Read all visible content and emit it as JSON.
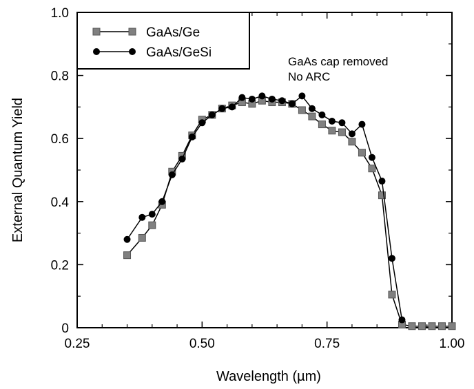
{
  "chart_data": {
    "type": "line",
    "title": "",
    "xlabel": "Wavelength (µm)",
    "ylabel": "External Quantum Yield",
    "xlim": [
      0.25,
      1.0
    ],
    "ylim": [
      0,
      1.0
    ],
    "x_ticks": [
      "0.25",
      "0.50",
      "0.75",
      "1.00"
    ],
    "y_ticks": [
      "0",
      "0.2",
      "0.4",
      "0.6",
      "0.8",
      "1.0"
    ],
    "grid": false,
    "legend_position": "top-left",
    "annotations": [
      "GaAs cap removed",
      "No ARC"
    ],
    "series": [
      {
        "name": "GaAs/Ge",
        "marker": "square",
        "color": "#808080",
        "x": [
          0.35,
          0.38,
          0.4,
          0.42,
          0.44,
          0.46,
          0.48,
          0.5,
          0.52,
          0.54,
          0.56,
          0.58,
          0.6,
          0.62,
          0.64,
          0.66,
          0.68,
          0.7,
          0.72,
          0.74,
          0.76,
          0.78,
          0.8,
          0.82,
          0.84,
          0.86,
          0.88,
          0.9,
          0.92,
          0.94,
          0.96,
          0.98,
          1.0
        ],
        "y": [
          0.23,
          0.285,
          0.325,
          0.39,
          0.495,
          0.545,
          0.61,
          0.66,
          0.675,
          0.695,
          0.705,
          0.715,
          0.71,
          0.72,
          0.715,
          0.715,
          0.71,
          0.69,
          0.67,
          0.645,
          0.625,
          0.62,
          0.59,
          0.555,
          0.505,
          0.42,
          0.105,
          0.01,
          0.005,
          0.005,
          0.005,
          0.005,
          0.005
        ]
      },
      {
        "name": "GaAs/GeSi",
        "marker": "circle",
        "color": "#000000",
        "x": [
          0.35,
          0.38,
          0.4,
          0.42,
          0.44,
          0.46,
          0.48,
          0.5,
          0.52,
          0.54,
          0.56,
          0.58,
          0.6,
          0.62,
          0.64,
          0.66,
          0.68,
          0.7,
          0.72,
          0.74,
          0.76,
          0.78,
          0.8,
          0.82,
          0.84,
          0.86,
          0.88,
          0.9
        ],
        "y": [
          0.28,
          0.35,
          0.36,
          0.4,
          0.485,
          0.535,
          0.605,
          0.65,
          0.675,
          0.695,
          0.7,
          0.73,
          0.725,
          0.735,
          0.725,
          0.72,
          0.71,
          0.735,
          0.695,
          0.675,
          0.655,
          0.65,
          0.615,
          0.645,
          0.54,
          0.465,
          0.22,
          0.025
        ]
      }
    ]
  }
}
